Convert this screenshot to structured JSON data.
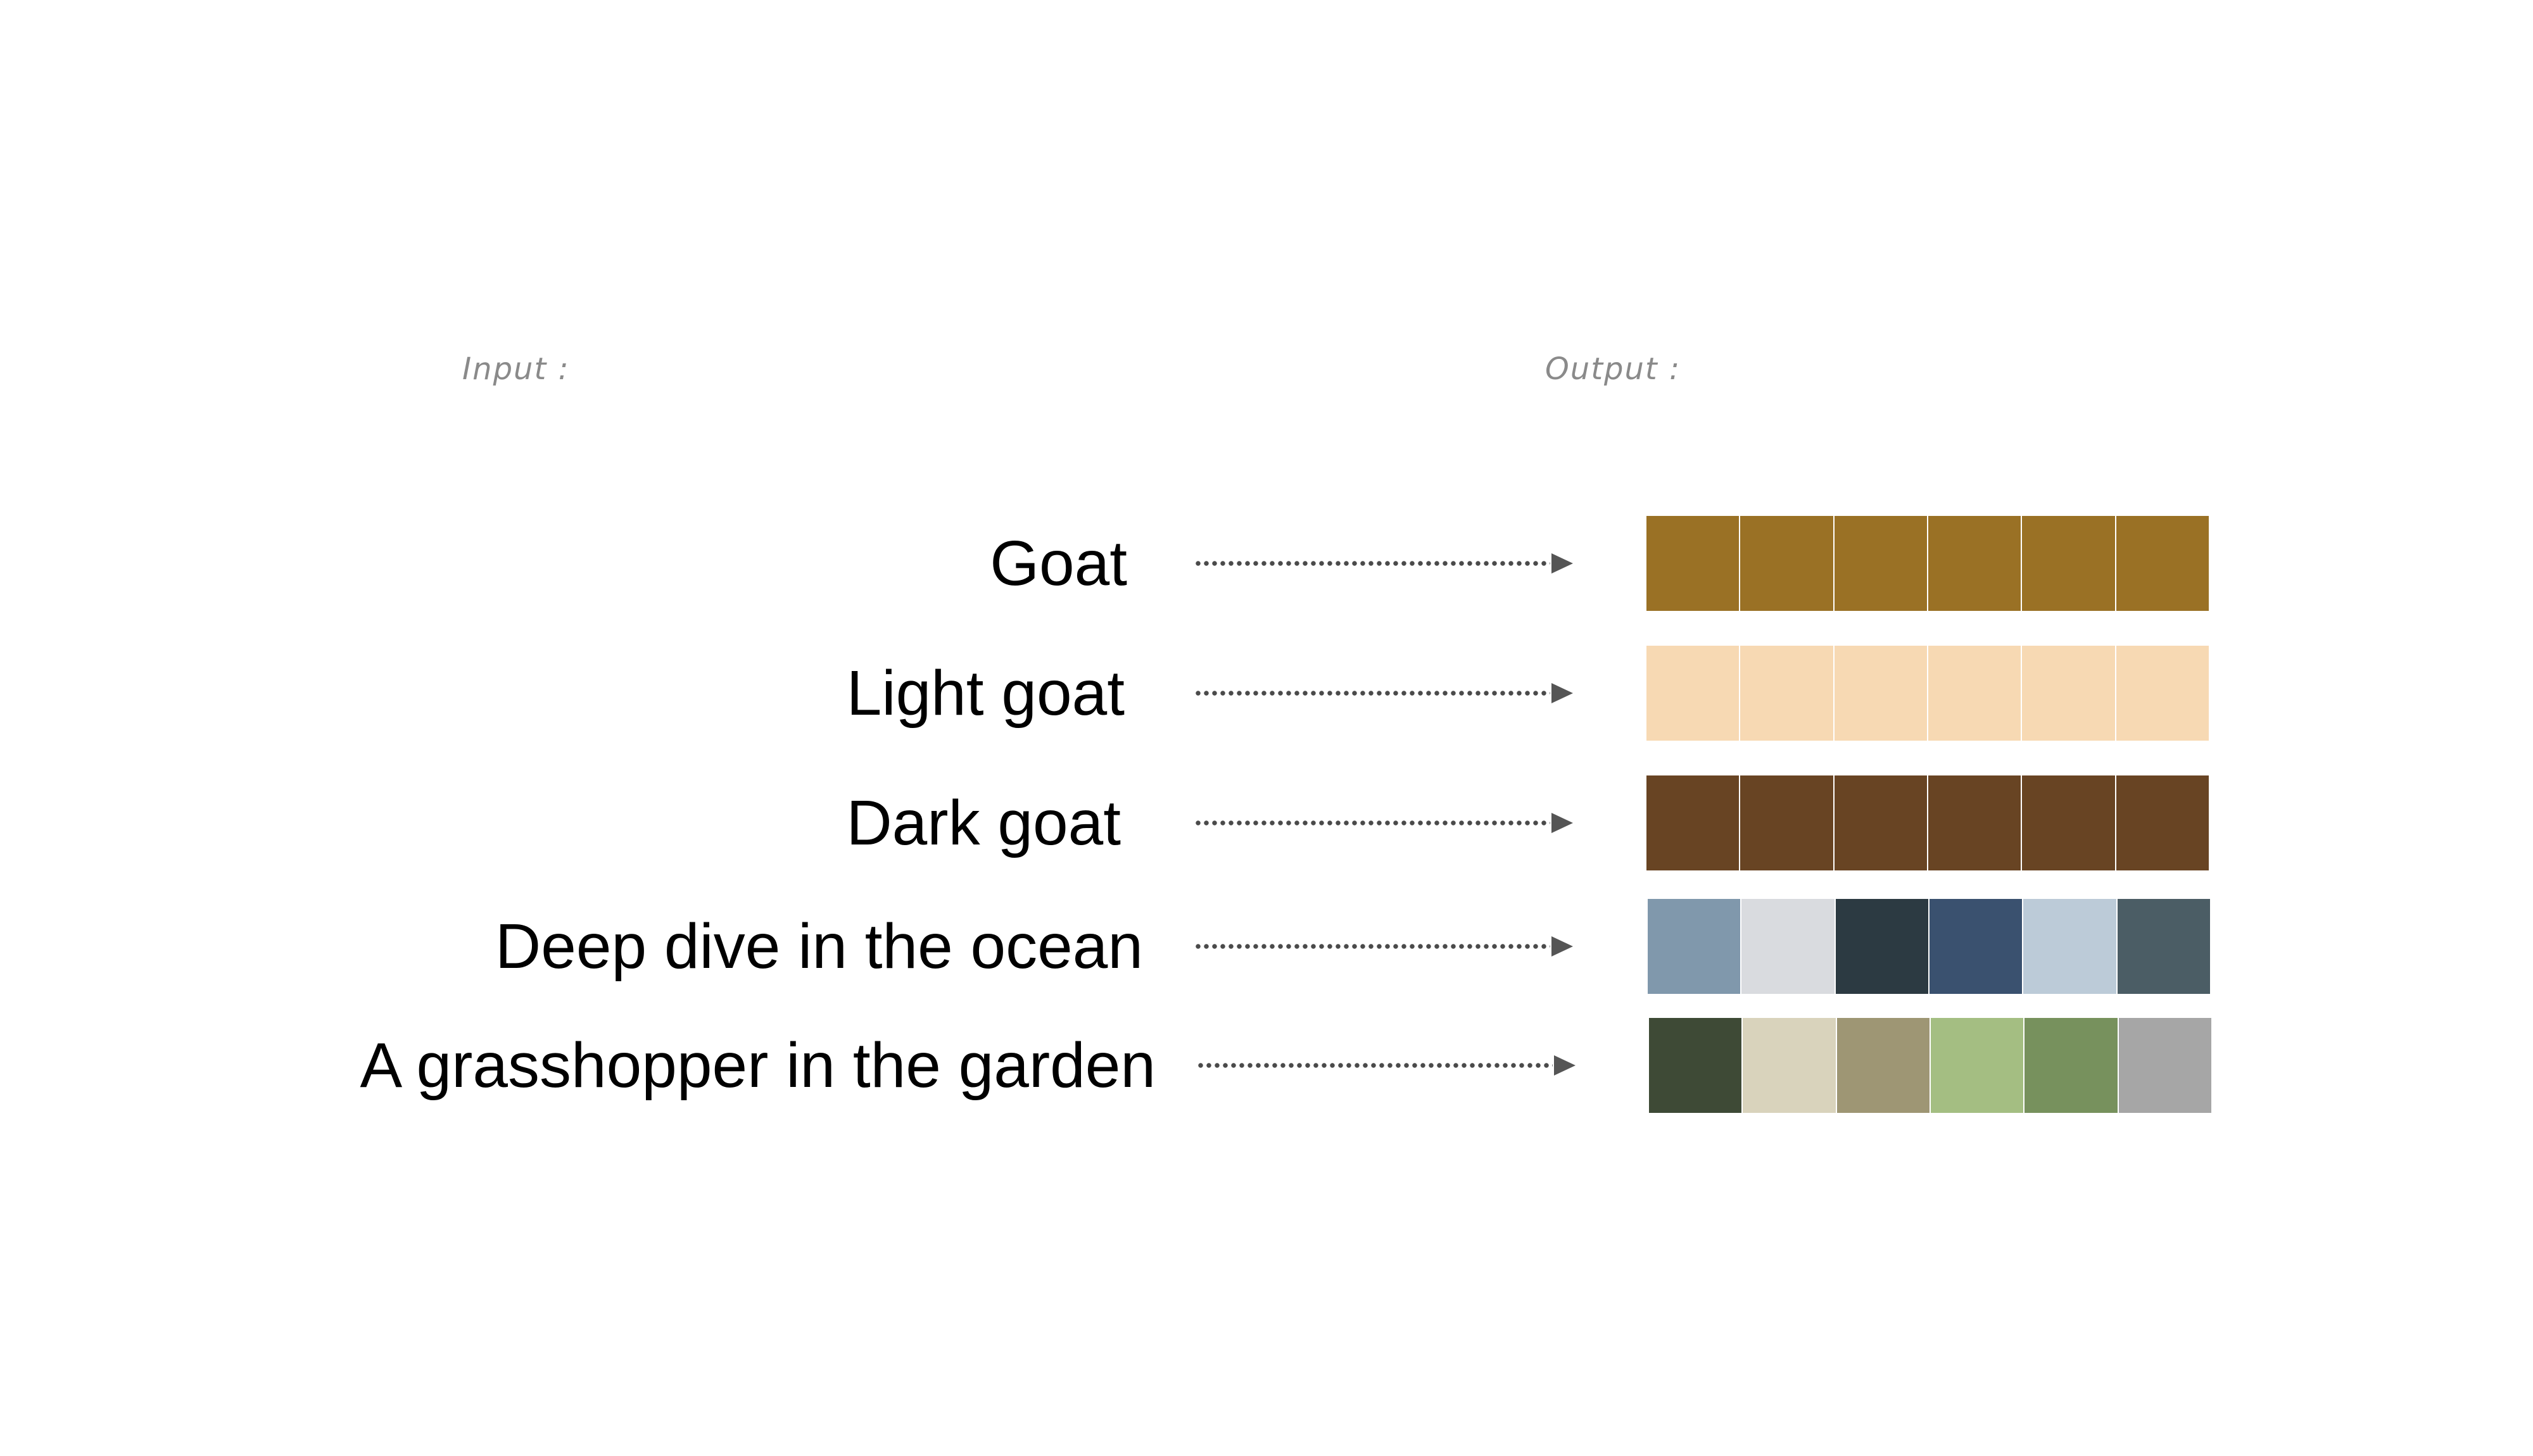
{
  "headings": {
    "input": "Input :",
    "output": "Output :"
  },
  "rows": [
    {
      "prompt": "Goat",
      "swatches": [
        "#9a7125",
        "#9a7125",
        "#9a7125",
        "#9a7125",
        "#9a7125",
        "#9a7125"
      ]
    },
    {
      "prompt": "Light goat",
      "swatches": [
        "#f7d9b3",
        "#f7d9b3",
        "#f7d9b3",
        "#f7d9b3",
        "#f7d9b3",
        "#f7d9b3"
      ]
    },
    {
      "prompt": "Dark goat",
      "swatches": [
        "#684423",
        "#684423",
        "#684423",
        "#684423",
        "#684423",
        "#684423"
      ]
    },
    {
      "prompt": "Deep dive in the ocean",
      "swatches": [
        "#8098ac",
        "#d9dbdf",
        "#2c3a42",
        "#3a516f",
        "#bccbd8",
        "#4b5d65"
      ]
    },
    {
      "prompt": "A grasshopper in the garden",
      "swatches": [
        "#3e4a36",
        "#d9d3bc",
        "#9e9674",
        "#a4be82",
        "#77915d",
        "#a6a6a6"
      ]
    }
  ]
}
